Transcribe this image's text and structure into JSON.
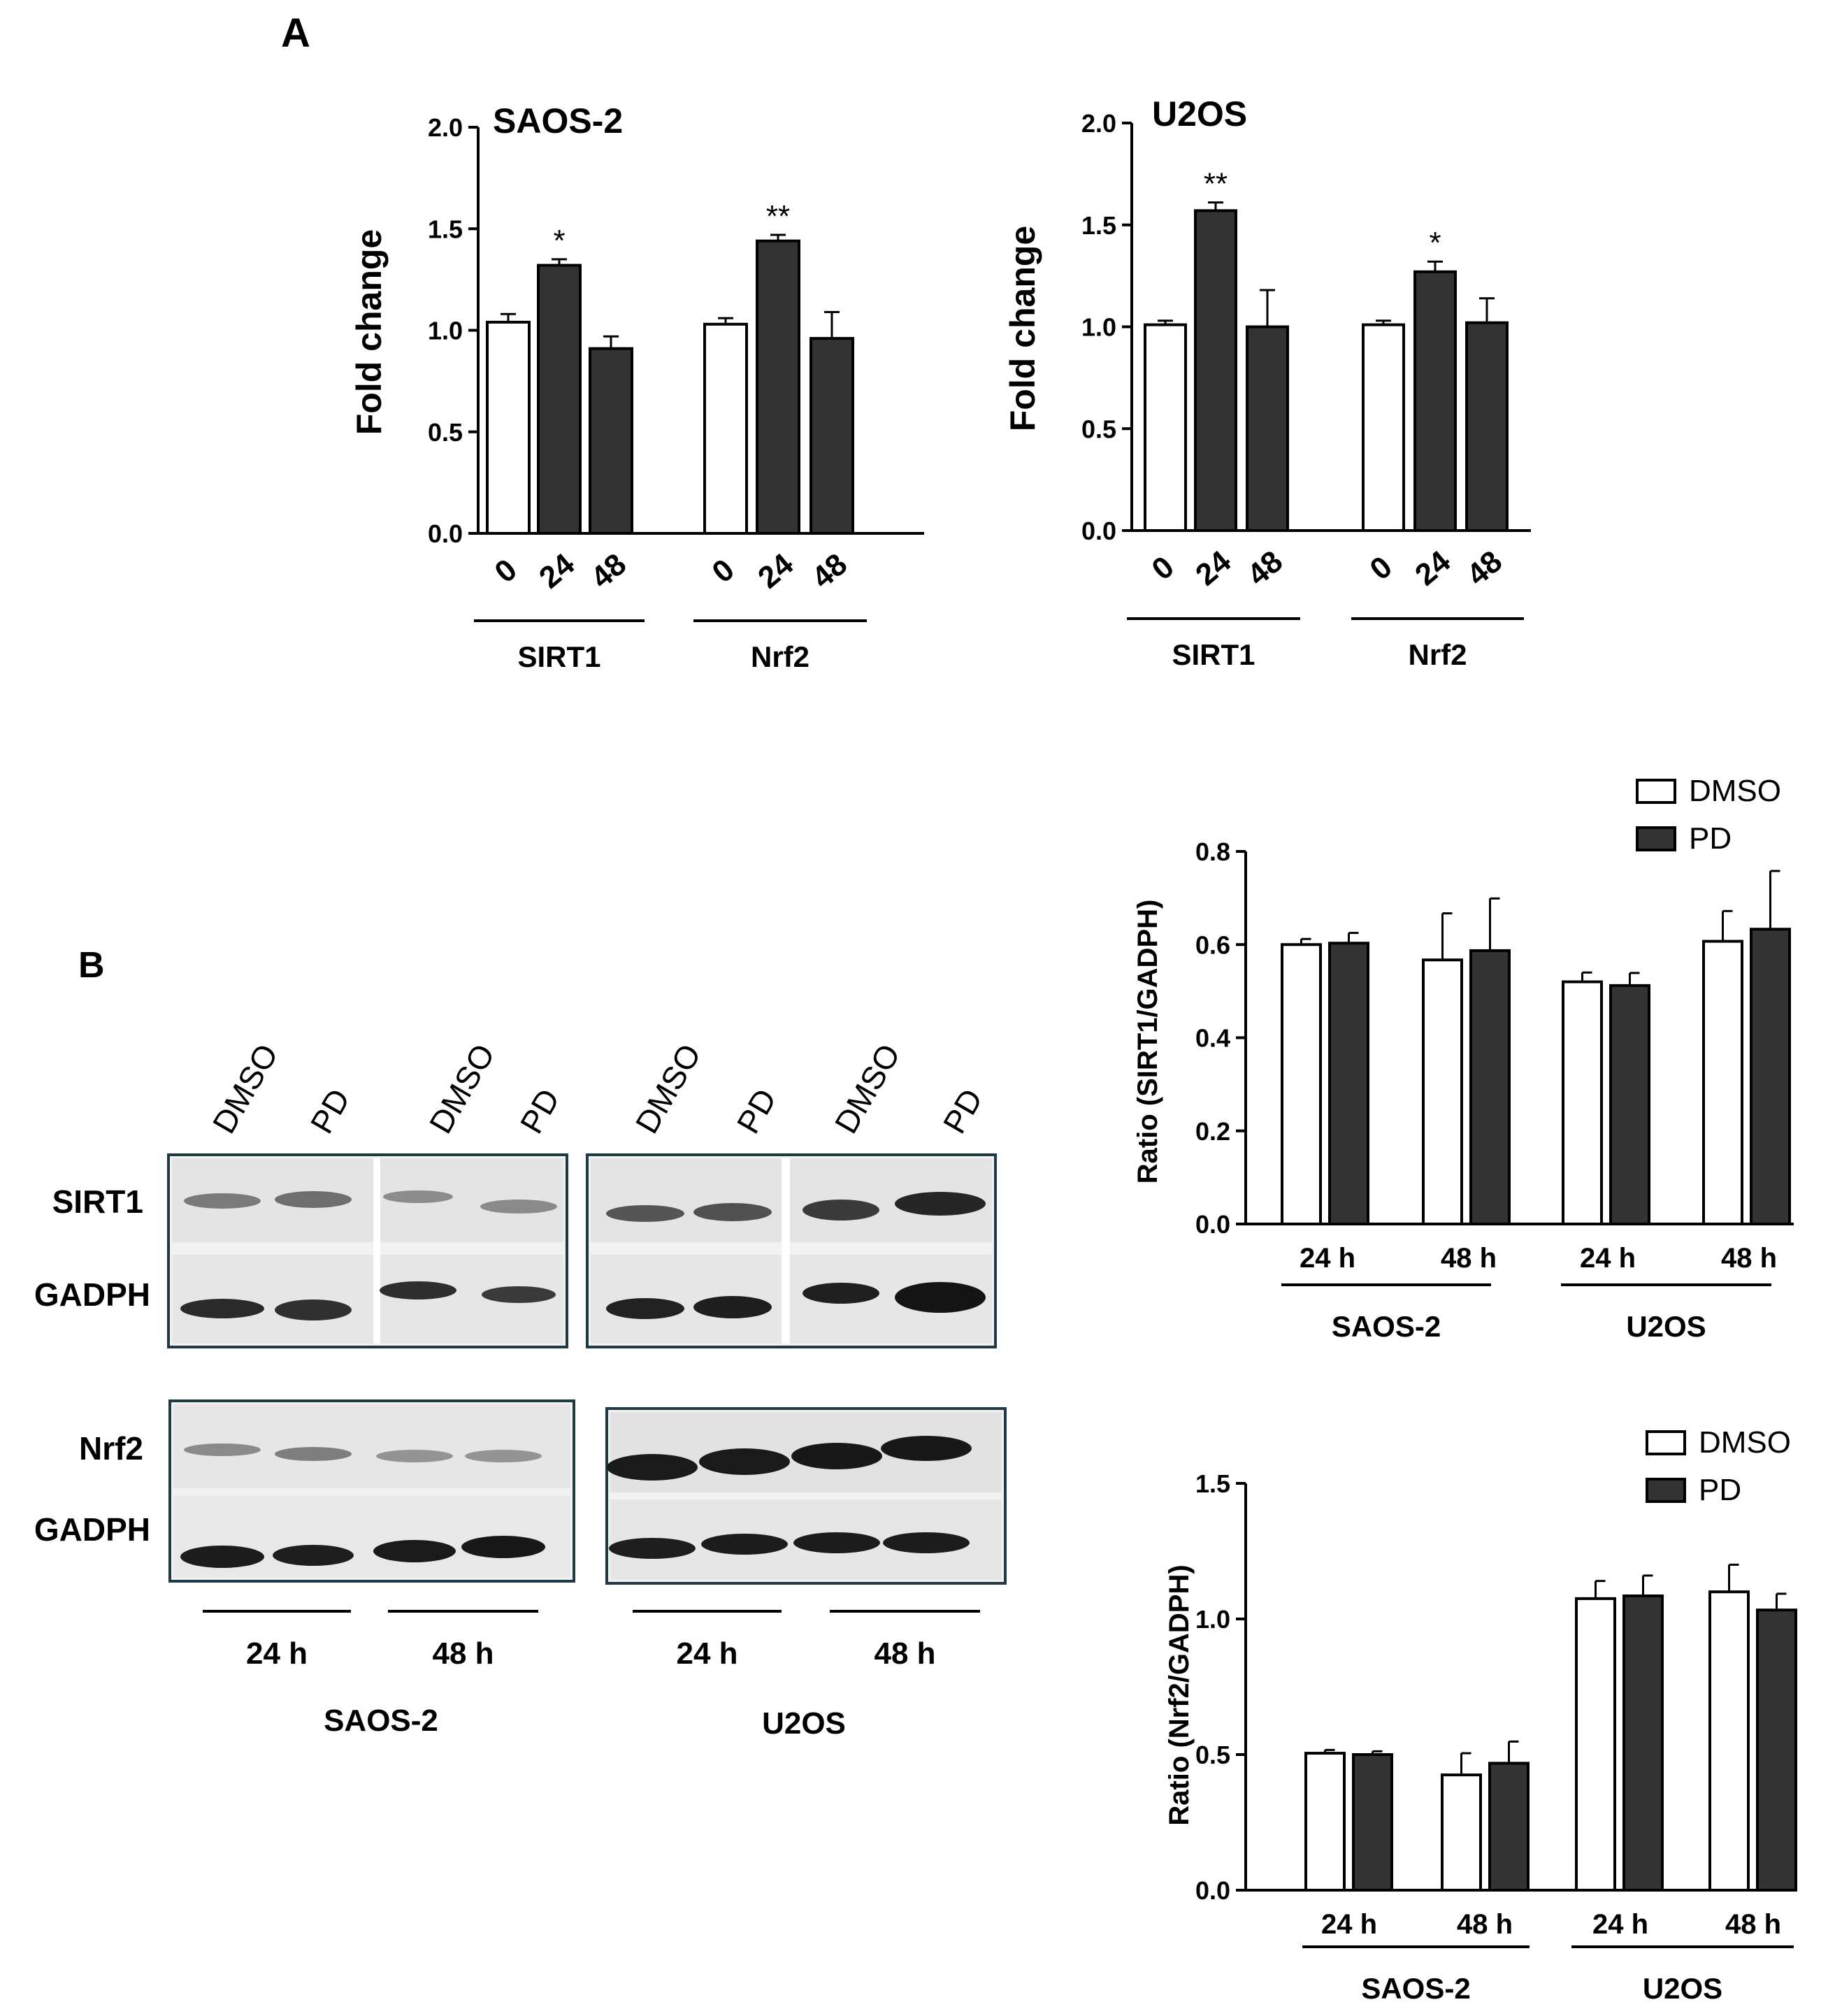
{
  "panels": {
    "a_label": "A",
    "b_label": "B"
  },
  "colors": {
    "dmso_fill": "#ffffff",
    "pd_fill": "#333333",
    "axis": "#000000",
    "blot_frame": "#1f3a44"
  },
  "chart_data": [
    {
      "id": "saos_fold",
      "type": "bar",
      "title": "SAOS-2",
      "ylabel": "Fold change",
      "ylim": [
        0,
        2.0
      ],
      "yticks": [
        "0.0",
        "0.5",
        "1.0",
        "1.5",
        "2.0"
      ],
      "groups": [
        {
          "label": "SIRT1",
          "bars": [
            {
              "label": "0",
              "value": 1.04,
              "err": 0.04,
              "fill": "dmso",
              "sig": ""
            },
            {
              "label": "24",
              "value": 1.32,
              "err": 0.03,
              "fill": "pd",
              "sig": "*"
            },
            {
              "label": "48",
              "value": 0.91,
              "err": 0.06,
              "fill": "pd",
              "sig": ""
            }
          ]
        },
        {
          "label": "Nrf2",
          "bars": [
            {
              "label": "0",
              "value": 1.03,
              "err": 0.03,
              "fill": "dmso",
              "sig": ""
            },
            {
              "label": "24",
              "value": 1.44,
              "err": 0.03,
              "fill": "pd",
              "sig": "**"
            },
            {
              "label": "48",
              "value": 0.96,
              "err": 0.13,
              "fill": "pd",
              "sig": ""
            }
          ]
        }
      ]
    },
    {
      "id": "u2os_fold",
      "type": "bar",
      "title": "U2OS",
      "ylabel": "Fold change",
      "ylim": [
        0,
        2.0
      ],
      "yticks": [
        "0.0",
        "0.5",
        "1.0",
        "1.5",
        "2.0"
      ],
      "groups": [
        {
          "label": "SIRT1",
          "bars": [
            {
              "label": "0",
              "value": 1.01,
              "err": 0.02,
              "fill": "dmso",
              "sig": ""
            },
            {
              "label": "24",
              "value": 1.57,
              "err": 0.04,
              "fill": "pd",
              "sig": "**"
            },
            {
              "label": "48",
              "value": 1.0,
              "err": 0.18,
              "fill": "pd",
              "sig": ""
            }
          ]
        },
        {
          "label": "Nrf2",
          "bars": [
            {
              "label": "0",
              "value": 1.01,
              "err": 0.02,
              "fill": "dmso",
              "sig": ""
            },
            {
              "label": "24",
              "value": 1.27,
              "err": 0.05,
              "fill": "pd",
              "sig": "*"
            },
            {
              "label": "48",
              "value": 1.02,
              "err": 0.12,
              "fill": "pd",
              "sig": ""
            }
          ]
        }
      ]
    },
    {
      "id": "sirt1_ratio",
      "type": "bar",
      "ylabel": "Ratio (SIRT1/GADPH)",
      "ylim": [
        0,
        0.8
      ],
      "yticks": [
        "0.0",
        "0.2",
        "0.4",
        "0.6",
        "0.8"
      ],
      "legend": [
        "DMSO",
        "PD"
      ],
      "legend_position": "top-right",
      "categories": [
        "24 h",
        "48 h",
        "24 h",
        "48 h"
      ],
      "cell_lines": [
        "SAOS-2",
        "U2OS"
      ],
      "series": [
        {
          "name": "DMSO",
          "values": [
            0.6,
            0.567,
            0.52,
            0.607
          ],
          "errors": [
            0.012,
            0.1,
            0.02,
            0.065
          ]
        },
        {
          "name": "PD",
          "values": [
            0.603,
            0.587,
            0.512,
            0.633
          ],
          "errors": [
            0.022,
            0.112,
            0.027,
            0.125
          ]
        }
      ]
    },
    {
      "id": "nrf2_ratio",
      "type": "bar",
      "ylabel": "Ratio (Nrf2/GADPH)",
      "ylim": [
        0,
        1.5
      ],
      "yticks": [
        "0.0",
        "0.5",
        "1.0",
        "1.5"
      ],
      "legend": [
        "DMSO",
        "PD"
      ],
      "legend_position": "top-right",
      "categories": [
        "24 h",
        "48 h",
        "24 h",
        "48 h"
      ],
      "cell_lines": [
        "SAOS-2",
        "U2OS"
      ],
      "series": [
        {
          "name": "DMSO",
          "values": [
            0.505,
            0.425,
            1.075,
            1.1
          ],
          "errors": [
            0.012,
            0.08,
            0.065,
            0.1
          ]
        },
        {
          "name": "PD",
          "values": [
            0.5,
            0.468,
            1.085,
            1.033
          ],
          "errors": [
            0.012,
            0.08,
            0.075,
            0.06
          ]
        }
      ]
    }
  ],
  "blot": {
    "lane_labels": [
      "DMSO",
      "PD",
      "DMSO",
      "PD",
      "DMSO",
      "PD",
      "DMSO",
      "PD"
    ],
    "row_labels": [
      "SIRT1",
      "GADPH",
      "Nrf2",
      "GADPH"
    ],
    "time_labels": [
      "24 h",
      "48 h",
      "24 h",
      "48 h"
    ],
    "cell_lines": [
      "SAOS-2",
      "U2OS"
    ]
  }
}
